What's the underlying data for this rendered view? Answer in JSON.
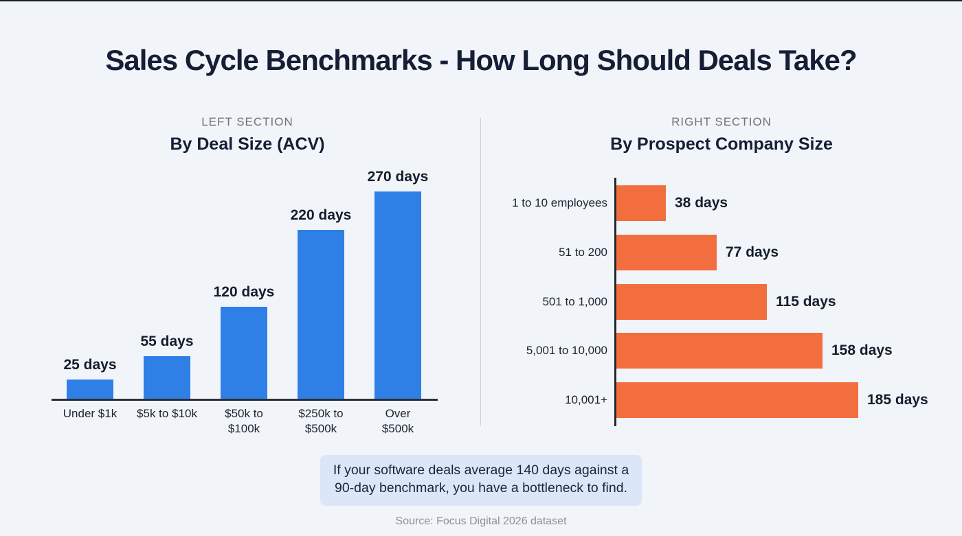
{
  "page": {
    "title": "Sales Cycle Benchmarks - How Long Should Deals Take?",
    "source": "Source: Focus Digital 2026 dataset"
  },
  "left_section": {
    "kicker": "LEFT SECTION",
    "heading": "By Deal Size (ACV)"
  },
  "right_section": {
    "kicker": "RIGHT SECTION",
    "heading": "By Prospect Company Size"
  },
  "callout": {
    "line1": "If your software deals average 140 days against a",
    "line2": "90-day benchmark, you have a bottleneck to find."
  },
  "colors": {
    "background": "#f1f4f9",
    "title_text": "#151e35",
    "kicker_gray": "#6d727c",
    "bar_blue": "#2e7fe6",
    "bar_orange": "#f26e3e",
    "axis_dark": "#2b2f37",
    "callout_bg": "#dbe7f8",
    "source_gray": "#8b909b"
  },
  "chart_data": [
    {
      "type": "bar",
      "orientation": "vertical",
      "title": "By Deal Size (ACV)",
      "categories": [
        "Under $1k",
        "$5k to $10k",
        "$50k to\n$100k",
        "$250k to\n$500k",
        "Over\n$500k"
      ],
      "values": [
        25,
        55,
        120,
        220,
        270
      ],
      "value_labels": [
        "25 days",
        "55 days",
        "120 days",
        "220 days",
        "270 days"
      ],
      "unit": "days",
      "bar_color": "#2e7fe6",
      "xlabel": "",
      "ylabel": "",
      "ylim": [
        0,
        290
      ],
      "grid": false,
      "legend": "none"
    },
    {
      "type": "bar",
      "orientation": "horizontal",
      "title": "By Prospect Company Size",
      "categories": [
        "1 to 10 employees",
        "51 to 200",
        "501 to 1,000",
        "5,001 to 10,000",
        "10,001+"
      ],
      "values": [
        38,
        77,
        115,
        158,
        185
      ],
      "value_labels": [
        "38 days",
        "77 days",
        "115 days",
        "158 days",
        "185 days"
      ],
      "unit": "days",
      "bar_color": "#f26e3e",
      "xlabel": "",
      "ylabel": "",
      "xlim": [
        0,
        195
      ],
      "grid": false,
      "legend": "none"
    }
  ]
}
